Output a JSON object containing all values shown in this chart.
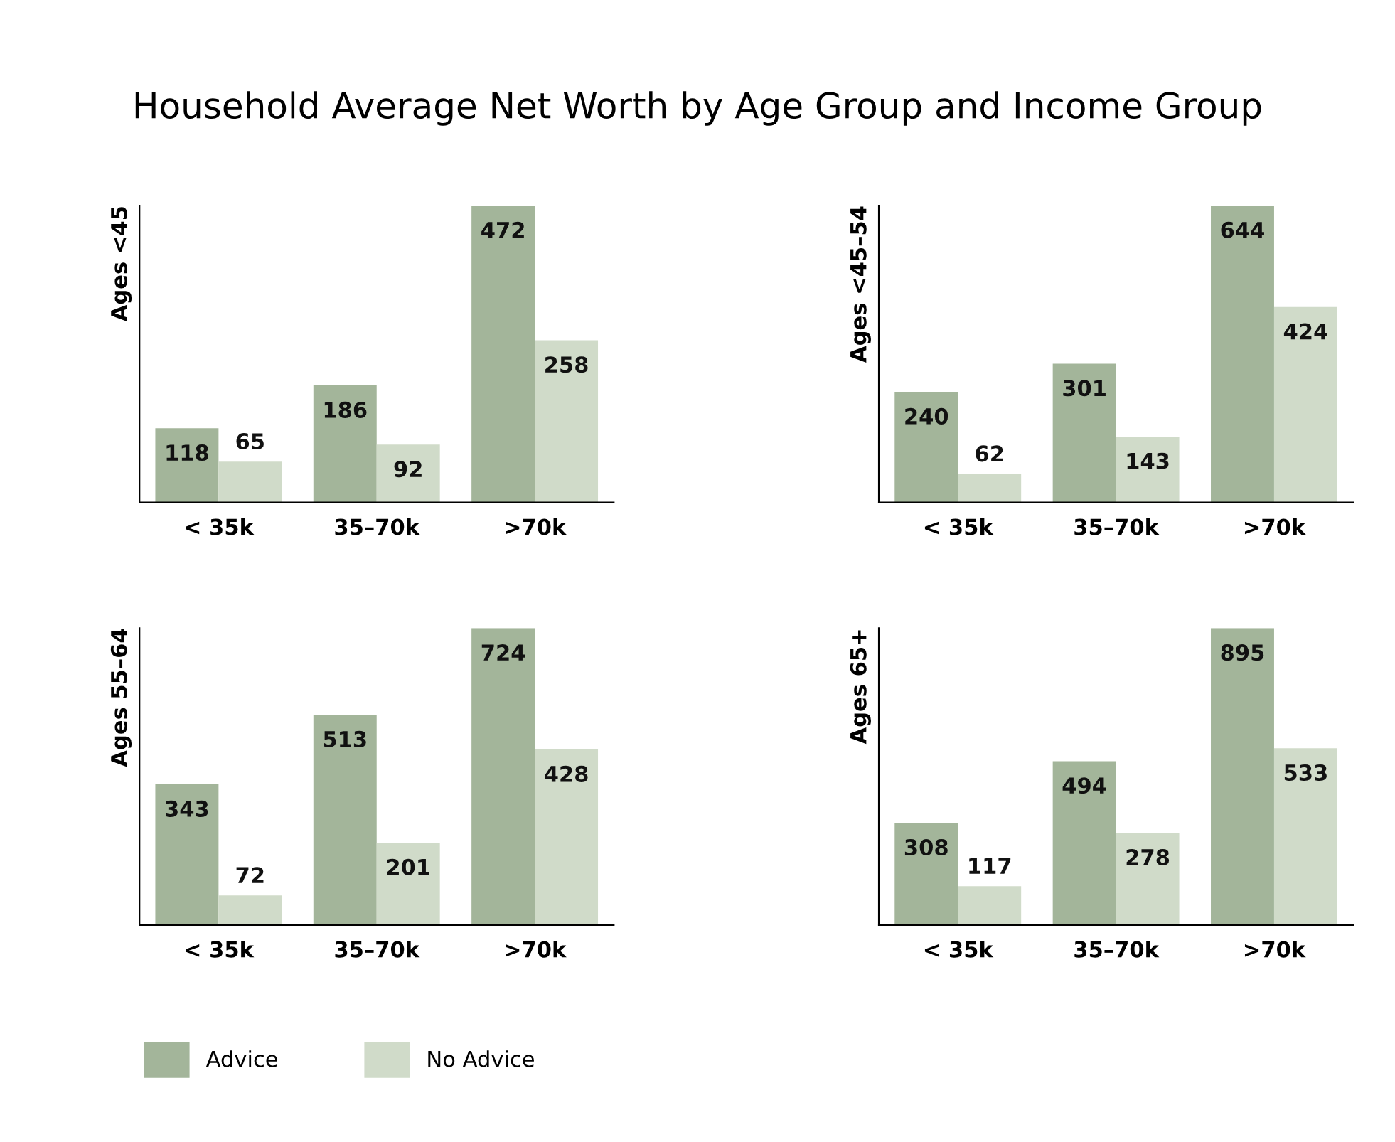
{
  "chart_data": [
    {
      "type": "bar",
      "title": "Household Average Net Worth by Age Group and Income Group",
      "ylabel": "Ages <45",
      "categories": [
        "< 35k",
        "35–70k",
        ">70k"
      ],
      "data_labels": true,
      "grid": false,
      "legend": "bottom left",
      "series": [
        {
          "name": "Advice",
          "color": "#a3b59a",
          "values": [
            118,
            186,
            472
          ]
        },
        {
          "name": "No Advice",
          "color": "#d0dbc9",
          "values": [
            65,
            92,
            258
          ]
        }
      ]
    },
    {
      "type": "bar",
      "ylabel": "Ages <45–54",
      "categories": [
        "< 35k",
        "35–70k",
        ">70k"
      ],
      "data_labels": true,
      "grid": false,
      "legend": false,
      "series": [
        {
          "color": "#a3b59a",
          "values": [
            240,
            301,
            644
          ]
        },
        {
          "color": "#d0dbc9",
          "values": [
            62,
            143,
            424
          ]
        }
      ]
    },
    {
      "type": "bar",
      "ylabel": "Ages 55–64",
      "categories": [
        "< 35k",
        "35–70k",
        ">70k"
      ],
      "data_labels": true,
      "grid": false,
      "legend": false,
      "series": [
        {
          "color": "#a3b59a",
          "values": [
            343,
            513,
            724
          ]
        },
        {
          "color": "#d0dbc9",
          "values": [
            72,
            201,
            428
          ]
        }
      ]
    },
    {
      "type": "bar",
      "ylabel": "Ages 65+",
      "categories": [
        "< 35k",
        "35–70k",
        ">70k"
      ],
      "data_labels": true,
      "grid": false,
      "legend": false,
      "series": [
        {
          "color": "#a3b59a",
          "values": [
            308,
            494,
            895
          ]
        },
        {
          "color": "#d0dbc9",
          "values": [
            117,
            278,
            533
          ]
        }
      ]
    }
  ]
}
